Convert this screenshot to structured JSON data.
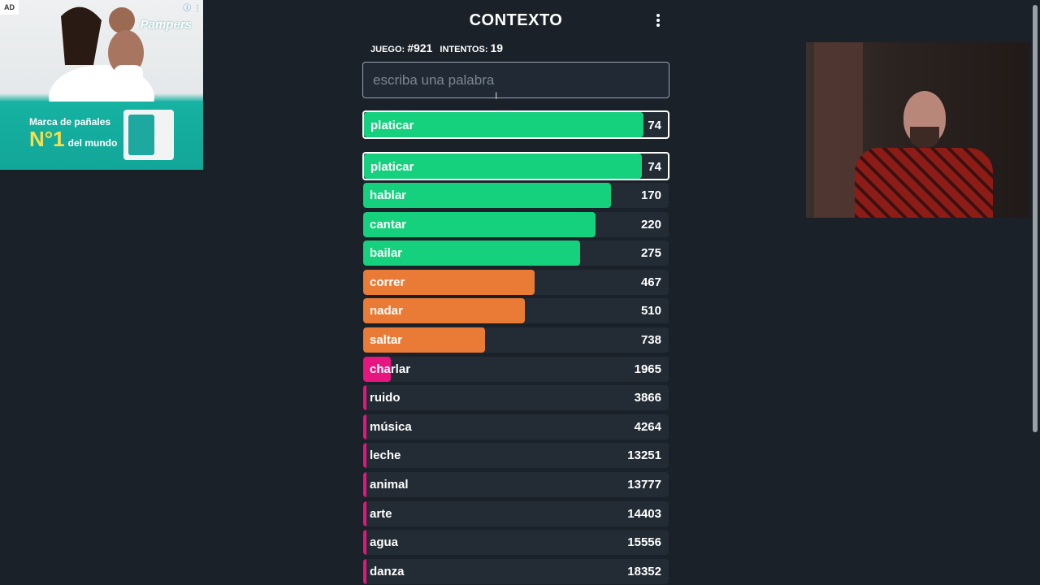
{
  "ad": {
    "label": "AD",
    "brand": "Pampers",
    "tagline_no1": "N°1",
    "tagline_top": "Marca de pañales",
    "tagline_bottom": "del mundo"
  },
  "app": {
    "title": "CONTEXTO"
  },
  "stats": {
    "game_label": "JUEGO:",
    "game_value": "#921",
    "attempts_label": "INTENTOS:",
    "attempts_value": "19"
  },
  "search": {
    "placeholder": "escriba una palabra"
  },
  "colors": {
    "green": "#15d07c",
    "orange": "#ea7b37",
    "pink": "#e6157f"
  },
  "last_guess": {
    "word": "platicar",
    "rank": "74",
    "fill": 0.91,
    "color": "green"
  },
  "guesses": [
    {
      "word": "platicar",
      "rank": "74",
      "fill": 0.91,
      "color": "green"
    },
    {
      "word": "hablar",
      "rank": "170",
      "fill": 0.81,
      "color": "green"
    },
    {
      "word": "cantar",
      "rank": "220",
      "fill": 0.76,
      "color": "green"
    },
    {
      "word": "bailar",
      "rank": "275",
      "fill": 0.71,
      "color": "green"
    },
    {
      "word": "correr",
      "rank": "467",
      "fill": 0.56,
      "color": "orange"
    },
    {
      "word": "nadar",
      "rank": "510",
      "fill": 0.53,
      "color": "orange"
    },
    {
      "word": "saltar",
      "rank": "738",
      "fill": 0.4,
      "color": "orange"
    },
    {
      "word": "charlar",
      "rank": "1965",
      "fill": 0.09,
      "color": "pink"
    },
    {
      "word": "ruido",
      "rank": "3866",
      "fill": 0.01,
      "color": "pink"
    },
    {
      "word": "música",
      "rank": "4264",
      "fill": 0.01,
      "color": "pink"
    },
    {
      "word": "leche",
      "rank": "13251",
      "fill": 0.01,
      "color": "pink"
    },
    {
      "word": "animal",
      "rank": "13777",
      "fill": 0.01,
      "color": "pink"
    },
    {
      "word": "arte",
      "rank": "14403",
      "fill": 0.01,
      "color": "pink"
    },
    {
      "word": "agua",
      "rank": "15556",
      "fill": 0.01,
      "color": "pink"
    },
    {
      "word": "danza",
      "rank": "18352",
      "fill": 0.01,
      "color": "pink"
    }
  ]
}
